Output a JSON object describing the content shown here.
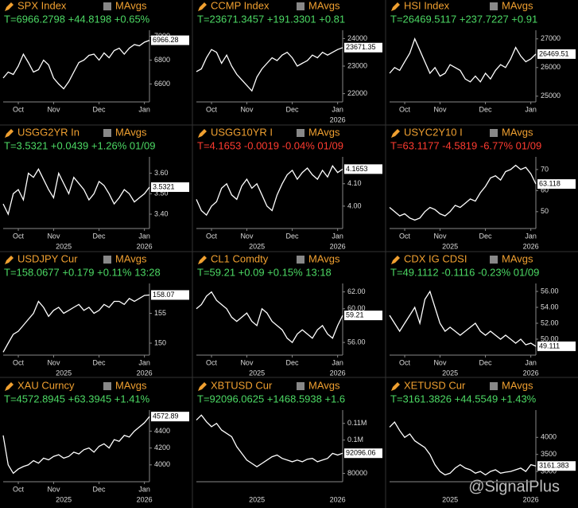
{
  "watermark": "@SignalPlus",
  "chart_data": [
    {
      "type": "line",
      "title": "SPX Index",
      "legend": "MAvgs",
      "stat": "T=6966.2798 +44.8198 +0.65%",
      "stat_color": "#4cd964",
      "last_label": "6966.28",
      "ylim": [
        6450,
        7050
      ],
      "yticks": [
        6600,
        6800,
        7000
      ],
      "xlim": [
        0,
        29
      ],
      "xticks": [
        {
          "value": 3,
          "label": "Oct"
        },
        {
          "value": 10,
          "label": "Nov"
        },
        {
          "value": 19,
          "label": "Dec"
        },
        {
          "value": 28,
          "label": "Jan"
        }
      ],
      "year_ticks": [],
      "values": [
        6650,
        6700,
        6680,
        6750,
        6850,
        6780,
        6700,
        6720,
        6800,
        6760,
        6650,
        6600,
        6560,
        6620,
        6700,
        6780,
        6800,
        6840,
        6850,
        6800,
        6860,
        6820,
        6880,
        6900,
        6850,
        6900,
        6930,
        6920,
        6950,
        6966.28
      ]
    },
    {
      "type": "line",
      "title": "CCMP Index",
      "legend": "MAvgs",
      "stat": "T=23671.3457 +191.3301 +0.81",
      "stat_color": "#4cd964",
      "last_label": "23671.35",
      "ylim": [
        21700,
        24300
      ],
      "yticks": [
        22000,
        23000,
        24000
      ],
      "xlim": [
        0,
        29
      ],
      "xticks": [
        {
          "value": 3,
          "label": "Oct"
        },
        {
          "value": 10,
          "label": "Nov"
        },
        {
          "value": 19,
          "label": "Dec"
        },
        {
          "value": 28,
          "label": "Jan"
        }
      ],
      "year_ticks": [
        {
          "value": 28,
          "label": "2026"
        }
      ],
      "values": [
        22800,
        22900,
        23300,
        23600,
        23500,
        23100,
        23400,
        23000,
        22700,
        22500,
        22300,
        22100,
        22600,
        22900,
        23100,
        23300,
        23200,
        23400,
        23500,
        23300,
        23000,
        23100,
        23200,
        23400,
        23300,
        23500,
        23400,
        23500,
        23600,
        23671.35
      ]
    },
    {
      "type": "line",
      "title": "HSI Index",
      "legend": "MAvgs",
      "stat": "T=26469.5117 +237.7227 +0.91",
      "stat_color": "#4cd964",
      "last_label": "26469.51",
      "ylim": [
        24800,
        27300
      ],
      "yticks": [
        25000,
        26000,
        27000
      ],
      "xlim": [
        0,
        29
      ],
      "xticks": [
        {
          "value": 3,
          "label": "Oct"
        },
        {
          "value": 10,
          "label": "Nov"
        },
        {
          "value": 19,
          "label": "Dec"
        },
        {
          "value": 28,
          "label": "Jan"
        }
      ],
      "year_ticks": [],
      "values": [
        25800,
        26000,
        25900,
        26200,
        26500,
        27000,
        26600,
        26200,
        25800,
        26000,
        25700,
        25800,
        26100,
        26000,
        25900,
        25600,
        25500,
        25700,
        25500,
        25800,
        25600,
        25900,
        26100,
        26000,
        26300,
        26700,
        26400,
        26200,
        26300,
        26469.51
      ]
    },
    {
      "type": "line",
      "title": "USGG2YR In",
      "legend": "MAvgs",
      "stat": "T=3.5321 +0.0439 +1.26% 01/09",
      "stat_color": "#4cd964",
      "last_label": "3.5321",
      "ylim": [
        3.33,
        3.68
      ],
      "yticks": [
        {
          "value": 3.4,
          "label": "3.40"
        },
        {
          "value": 3.5,
          "label": "3.50"
        },
        {
          "value": 3.6,
          "label": "3.60"
        }
      ],
      "xlim": [
        0,
        29
      ],
      "xticks": [
        {
          "value": 3,
          "label": "Oct"
        },
        {
          "value": 10,
          "label": "Nov"
        },
        {
          "value": 19,
          "label": "Dec"
        },
        {
          "value": 28,
          "label": "Jan"
        }
      ],
      "year_ticks": [
        {
          "value": 12,
          "label": "2025"
        },
        {
          "value": 28,
          "label": "2026"
        }
      ],
      "values": [
        3.45,
        3.4,
        3.5,
        3.52,
        3.47,
        3.6,
        3.58,
        3.62,
        3.57,
        3.52,
        3.48,
        3.6,
        3.55,
        3.5,
        3.58,
        3.55,
        3.52,
        3.47,
        3.5,
        3.56,
        3.54,
        3.5,
        3.45,
        3.48,
        3.52,
        3.5,
        3.46,
        3.48,
        3.5,
        3.5321
      ]
    },
    {
      "type": "line",
      "title": "USGG10YR I",
      "legend": "MAvgs",
      "stat": "T=4.1653 -0.0019 -0.04% 01/09",
      "stat_color": "#ff3b30",
      "last_label": "4.1653",
      "ylim": [
        3.9,
        4.22
      ],
      "yticks": [
        {
          "value": 4.0,
          "label": "4.00"
        },
        {
          "value": 4.1,
          "label": "4.10"
        }
      ],
      "xlim": [
        0,
        29
      ],
      "xticks": [
        {
          "value": 3,
          "label": "Oct"
        },
        {
          "value": 10,
          "label": "Nov"
        },
        {
          "value": 19,
          "label": "Dec"
        },
        {
          "value": 28,
          "label": "Jan"
        }
      ],
      "year_ticks": [
        {
          "value": 12,
          "label": "2025"
        },
        {
          "value": 28,
          "label": "2026"
        }
      ],
      "values": [
        4.03,
        3.98,
        3.96,
        4.0,
        4.02,
        4.08,
        4.1,
        4.05,
        4.03,
        4.09,
        4.12,
        4.08,
        4.1,
        4.05,
        4.0,
        3.98,
        4.05,
        4.1,
        4.14,
        4.16,
        4.12,
        4.15,
        4.17,
        4.14,
        4.12,
        4.16,
        4.13,
        4.18,
        4.15,
        4.1653
      ]
    },
    {
      "type": "line",
      "title": "USYC2Y10 I",
      "legend": "MAvgs",
      "stat": "T=63.1177 -4.5819 -6.77% 01/09",
      "stat_color": "#ff3b30",
      "last_label": "63.118",
      "ylim": [
        42,
        76
      ],
      "yticks": [
        50,
        60,
        70
      ],
      "xlim": [
        0,
        29
      ],
      "xticks": [
        {
          "value": 3,
          "label": "Oct"
        },
        {
          "value": 10,
          "label": "Nov"
        },
        {
          "value": 19,
          "label": "Dec"
        },
        {
          "value": 28,
          "label": "Jan"
        }
      ],
      "year_ticks": [
        {
          "value": 12,
          "label": "2025"
        },
        {
          "value": 28,
          "label": "2026"
        }
      ],
      "values": [
        52,
        50,
        48,
        49,
        47,
        46,
        47,
        50,
        52,
        51,
        49,
        48,
        50,
        53,
        52,
        54,
        56,
        55,
        59,
        62,
        66,
        67,
        65,
        69,
        70,
        72,
        70,
        71,
        68,
        63.118
      ]
    },
    {
      "type": "line",
      "title": "USDJPY Cur",
      "legend": "MAvgs",
      "stat": "T=158.0677 +0.179 +0.11% 13:28",
      "stat_color": "#4cd964",
      "last_label": "158.07",
      "ylim": [
        148,
        160
      ],
      "yticks": [
        150,
        155
      ],
      "xlim": [
        0,
        29
      ],
      "xticks": [
        {
          "value": 3,
          "label": "Oct"
        },
        {
          "value": 10,
          "label": "Nov"
        },
        {
          "value": 19,
          "label": "Dec"
        },
        {
          "value": 28,
          "label": "Jan"
        }
      ],
      "year_ticks": [
        {
          "value": 12,
          "label": "2025"
        },
        {
          "value": 28,
          "label": "2026"
        }
      ],
      "values": [
        148.5,
        150,
        151.5,
        152,
        153,
        154,
        155,
        157,
        156,
        154.5,
        155.5,
        156,
        155,
        155.5,
        156,
        156.5,
        155.5,
        156,
        155,
        155.5,
        156.5,
        156,
        157,
        157,
        156.5,
        157.5,
        157,
        157.5,
        158,
        158.07
      ]
    },
    {
      "type": "line",
      "title": "CL1 Comdty",
      "legend": "MAvgs",
      "stat": "T=59.21 +0.09 +0.15% 13:18",
      "stat_color": "#4cd964",
      "last_label": "59.21",
      "ylim": [
        54.5,
        63
      ],
      "yticks": [
        {
          "value": 56,
          "label": "56.00"
        },
        {
          "value": 60,
          "label": "60.00"
        },
        {
          "value": 62,
          "label": "62.00"
        }
      ],
      "xlim": [
        0,
        29
      ],
      "xticks": [
        {
          "value": 3,
          "label": "Oct"
        },
        {
          "value": 10,
          "label": "Nov"
        },
        {
          "value": 19,
          "label": "Dec"
        },
        {
          "value": 28,
          "label": "Jan"
        }
      ],
      "year_ticks": [
        {
          "value": 12,
          "label": "2025"
        },
        {
          "value": 28,
          "label": "2026"
        }
      ],
      "values": [
        60,
        60.5,
        61.5,
        62,
        61,
        60.5,
        60,
        59,
        58.5,
        59,
        59.5,
        58.5,
        58,
        60,
        59.5,
        58.5,
        58,
        57.5,
        56.5,
        56,
        57,
        57.5,
        57,
        56.5,
        57.5,
        58,
        57,
        56.5,
        58,
        59.21
      ]
    },
    {
      "type": "line",
      "title": "CDX IG CDSI",
      "legend": "MAvgs",
      "stat": "T=49.1112 -0.1116 -0.23% 01/09",
      "stat_color": "#4cd964",
      "last_label": "49.111",
      "ylim": [
        48,
        57
      ],
      "yticks": [
        {
          "value": 50,
          "label": "50.00"
        },
        {
          "value": 52,
          "label": "52.00"
        },
        {
          "value": 54,
          "label": "54.00"
        },
        {
          "value": 56,
          "label": "56.00"
        }
      ],
      "xlim": [
        0,
        29
      ],
      "xticks": [
        {
          "value": 3,
          "label": "Oct"
        },
        {
          "value": 10,
          "label": "Nov"
        },
        {
          "value": 19,
          "label": "Dec"
        },
        {
          "value": 28,
          "label": "Jan"
        }
      ],
      "year_ticks": [
        {
          "value": 12,
          "label": "2025"
        },
        {
          "value": 28,
          "label": "2026"
        }
      ],
      "values": [
        53,
        52,
        51,
        52,
        53,
        54,
        52,
        55,
        56,
        54,
        52,
        51,
        51.5,
        51,
        50.5,
        51,
        51.5,
        52,
        51,
        50.5,
        51,
        50.5,
        50,
        50.5,
        50,
        49.5,
        50,
        49.3,
        49.5,
        49.111
      ]
    },
    {
      "type": "line",
      "title": "XAU Curncy",
      "legend": "MAvgs",
      "stat": "T=4572.8945 +63.3945 +1.41%",
      "stat_color": "#4cd964",
      "last_label": "4572.89",
      "ylim": [
        3800,
        4650
      ],
      "yticks": [
        4000,
        4200,
        4400
      ],
      "xlim": [
        0,
        29
      ],
      "xticks": [
        {
          "value": 3,
          "label": "Oct"
        },
        {
          "value": 10,
          "label": "Nov"
        },
        {
          "value": 19,
          "label": "Dec"
        },
        {
          "value": 28,
          "label": "Jan"
        }
      ],
      "year_ticks": [
        {
          "value": 12,
          "label": "2025"
        },
        {
          "value": 28,
          "label": "2026"
        }
      ],
      "values": [
        4350,
        4000,
        3900,
        3950,
        3980,
        4000,
        4050,
        4020,
        4080,
        4060,
        4100,
        4120,
        4080,
        4100,
        4150,
        4130,
        4180,
        4200,
        4150,
        4220,
        4250,
        4200,
        4300,
        4280,
        4350,
        4330,
        4400,
        4450,
        4500,
        4572.89
      ]
    },
    {
      "type": "line",
      "title": "XBTUSD Cur",
      "legend": "MAvgs",
      "stat": "T=92096.0625 +1468.5938 +1.6",
      "stat_color": "#4cd964",
      "last_label": "92096.06",
      "ylim": [
        75000,
        118000
      ],
      "yticks": [
        80000,
        {
          "value": 100000,
          "label": "0.1M"
        },
        {
          "value": 110000,
          "label": "0.11M"
        }
      ],
      "xlim": [
        0,
        29
      ],
      "xticks": [],
      "year_ticks": [
        {
          "value": 12,
          "label": "2025"
        },
        {
          "value": 28,
          "label": "2026"
        }
      ],
      "values": [
        112000,
        115000,
        111000,
        108000,
        110000,
        106000,
        104000,
        102000,
        96000,
        92000,
        88000,
        86000,
        84000,
        86000,
        88000,
        90000,
        91000,
        89000,
        88000,
        87000,
        88000,
        87000,
        88500,
        89000,
        87000,
        88000,
        89000,
        92000,
        91000,
        92096.06
      ]
    },
    {
      "type": "line",
      "title": "XETUSD Cur",
      "legend": "MAvgs",
      "stat": "T=3161.3826 +44.5549 +1.43%",
      "stat_color": "#4cd964",
      "last_label": "3161.383",
      "ylim": [
        2700,
        4800
      ],
      "yticks": [
        3000,
        3500,
        4000
      ],
      "xlim": [
        0,
        29
      ],
      "xticks": [],
      "year_ticks": [
        {
          "value": 12,
          "label": "2025"
        },
        {
          "value": 28,
          "label": "2026"
        }
      ],
      "values": [
        4300,
        4450,
        4200,
        4000,
        4100,
        3900,
        3800,
        3700,
        3500,
        3200,
        3000,
        2900,
        2950,
        3100,
        3200,
        3100,
        3050,
        2950,
        3000,
        2900,
        3000,
        3050,
        2950,
        2980,
        3000,
        3050,
        3100,
        3000,
        3200,
        3161.383
      ]
    }
  ]
}
